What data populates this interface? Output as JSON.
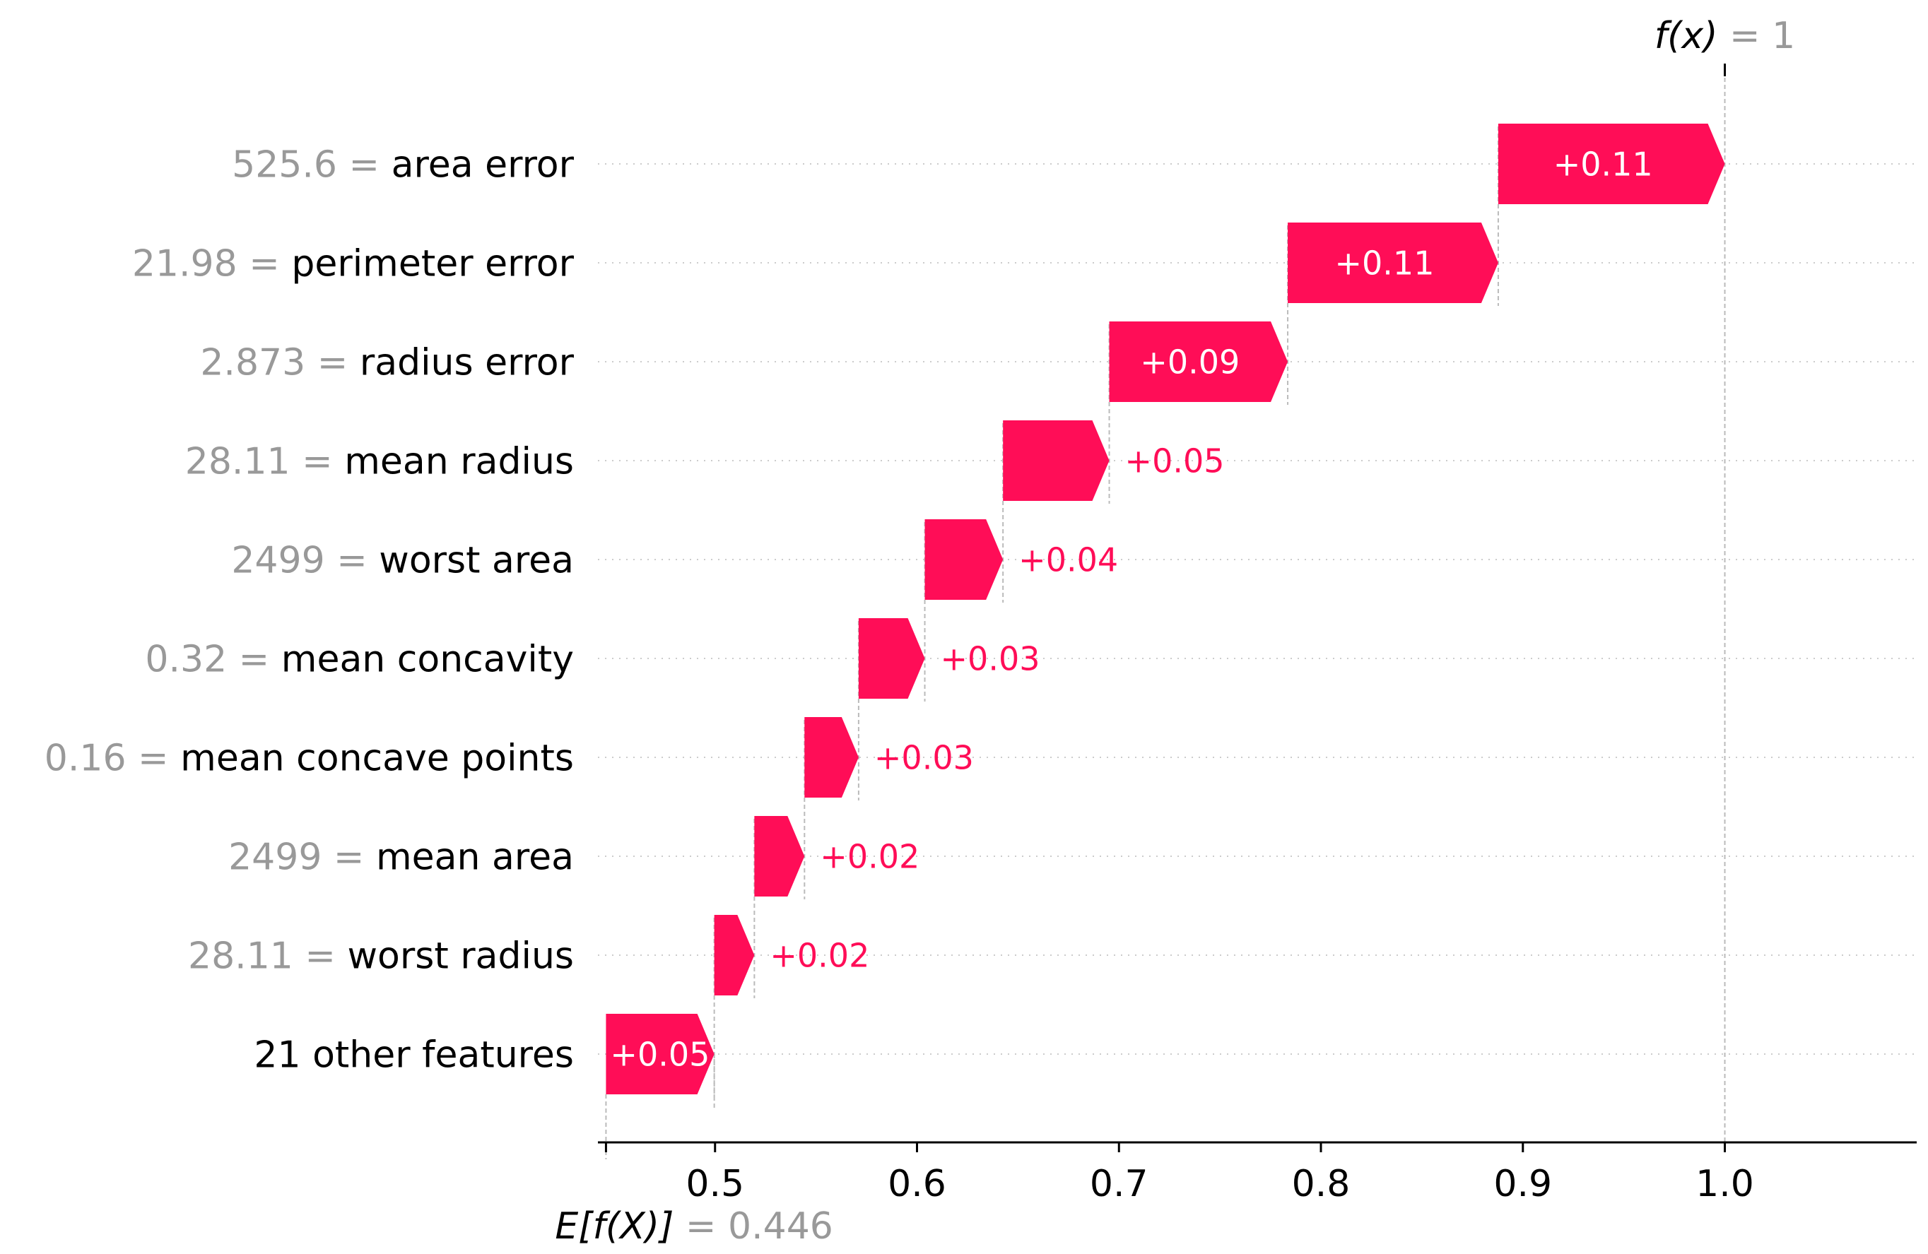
{
  "chart_data": {
    "type": "waterfall",
    "base_value": 0.446,
    "output_value": 1,
    "base_label": {
      "expr": "E[f(X)]",
      "equals": "=",
      "value": "0.446"
    },
    "output_label": {
      "expr": "f(x)",
      "equals": "=",
      "value": "1"
    },
    "features": [
      {
        "value_text": "525.6",
        "name": "area error",
        "contribution": 0.113,
        "label": "+0.11"
      },
      {
        "value_text": "21.98",
        "name": "perimeter error",
        "contribution": 0.105,
        "label": "+0.11"
      },
      {
        "value_text": "2.873",
        "name": "radius error",
        "contribution": 0.089,
        "label": "+0.09"
      },
      {
        "value_text": "28.11",
        "name": "mean radius",
        "contribution": 0.053,
        "label": "+0.05"
      },
      {
        "value_text": "2499",
        "name": "worst area",
        "contribution": 0.039,
        "label": "+0.04"
      },
      {
        "value_text": "0.32",
        "name": "mean concavity",
        "contribution": 0.033,
        "label": "+0.03"
      },
      {
        "value_text": "0.16",
        "name": "mean concave points",
        "contribution": 0.027,
        "label": "+0.03"
      },
      {
        "value_text": "2499",
        "name": "mean area",
        "contribution": 0.025,
        "label": "+0.02"
      },
      {
        "value_text": "28.11",
        "name": "worst radius",
        "contribution": 0.02,
        "label": "+0.02"
      },
      {
        "value_text": "",
        "name": "21 other features",
        "contribution": 0.054,
        "label": "+0.05"
      }
    ],
    "x_ticks": [
      0.5,
      0.6,
      0.7,
      0.8,
      0.9,
      1.0
    ],
    "x_tick_labels": [
      "0.5",
      "0.6",
      "0.7",
      "0.8",
      "0.9",
      "1.0"
    ],
    "xlim": [
      0.442,
      1.095
    ],
    "grid": "dotted horizontal per row",
    "colors": {
      "positive": "#ff0d57",
      "muted_text": "#999999",
      "guide_line": "#bbbbbb",
      "grid": "#cccccc"
    }
  }
}
